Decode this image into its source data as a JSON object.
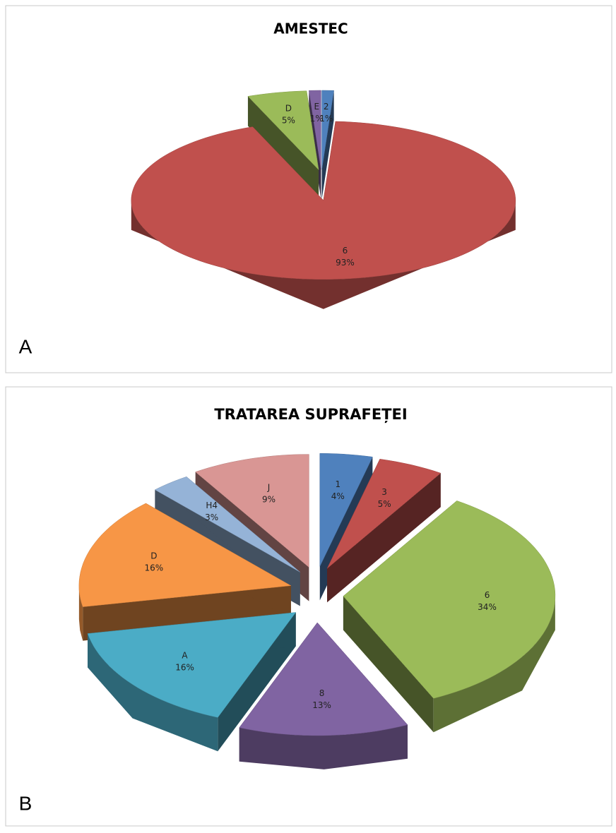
{
  "chart_data": [
    {
      "type": "pie3d",
      "title": "AMESTEC",
      "panel": "A",
      "categories": [
        "2",
        "6",
        "D",
        "E"
      ],
      "values": [
        1,
        93,
        5,
        1
      ],
      "value_labels": [
        "1%",
        "93%",
        "5%",
        "1%"
      ],
      "colors": [
        "#4f81bd",
        "#c0504d",
        "#9bbb59",
        "#8064a2"
      ]
    },
    {
      "type": "pie3d",
      "title": "TRATAREA SUPRAFEȚEI",
      "panel": "B",
      "categories": [
        "1",
        "3",
        "6",
        "8",
        "A",
        "D",
        "H4",
        "J"
      ],
      "values": [
        4,
        5,
        34,
        13,
        16,
        16,
        3,
        9
      ],
      "value_labels": [
        "4%",
        "5%",
        "34%",
        "13%",
        "16%",
        "16%",
        "3%",
        "9%"
      ],
      "colors": [
        "#4f81bd",
        "#c0504d",
        "#9bbb59",
        "#8064a2",
        "#4bacc6",
        "#f79646",
        "#95b3d7",
        "#d99694"
      ]
    }
  ]
}
